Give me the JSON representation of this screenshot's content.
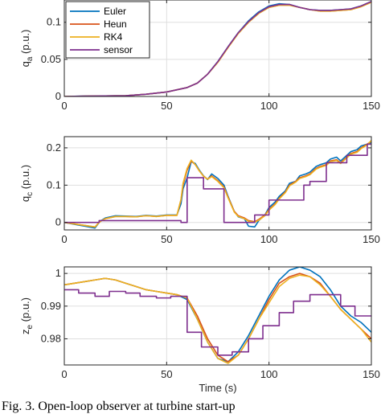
{
  "caption": "Fig. 3. Open-loop observer at turbine start-up",
  "chart_data": [
    {
      "type": "line",
      "ylabel": "q_a (p.u.)",
      "ylabel_main": "q",
      "ylabel_sub": "a",
      "ylabel_rest": " (p.u.)",
      "xlim": [
        0,
        150
      ],
      "ylim": [
        0,
        0.13
      ],
      "xticks": [
        0,
        50,
        100,
        150
      ],
      "yticks": [
        0,
        0.05,
        0.1
      ],
      "ytick_labels": [
        "0",
        "0.05",
        "0.1"
      ],
      "grid": true,
      "legend": "top-left",
      "series": [
        {
          "name": "Euler",
          "color": "#0072bd",
          "x": [
            0,
            10,
            20,
            30,
            40,
            50,
            55,
            60,
            65,
            70,
            75,
            80,
            85,
            90,
            95,
            100,
            105,
            110,
            115,
            120,
            125,
            130,
            135,
            140,
            145,
            150
          ],
          "y": [
            0,
            0.0005,
            0.0008,
            0.001,
            0.003,
            0.006,
            0.009,
            0.012,
            0.018,
            0.03,
            0.047,
            0.067,
            0.086,
            0.102,
            0.114,
            0.122,
            0.125,
            0.124,
            0.12,
            0.117,
            0.116,
            0.116,
            0.117,
            0.118,
            0.122,
            0.128
          ]
        },
        {
          "name": "Heun",
          "color": "#d95319",
          "x": [
            0,
            10,
            20,
            30,
            40,
            50,
            55,
            60,
            65,
            70,
            75,
            80,
            85,
            90,
            95,
            100,
            105,
            110,
            115,
            120,
            125,
            130,
            135,
            140,
            145,
            150
          ],
          "y": [
            0,
            0.0004,
            0.0008,
            0.001,
            0.003,
            0.006,
            0.009,
            0.012,
            0.018,
            0.03,
            0.046,
            0.066,
            0.085,
            0.1,
            0.112,
            0.12,
            0.123,
            0.123,
            0.12,
            0.117,
            0.115,
            0.115,
            0.116,
            0.117,
            0.121,
            0.127
          ]
        },
        {
          "name": "RK4",
          "color": "#edb120",
          "x": [
            0,
            10,
            20,
            30,
            40,
            50,
            55,
            60,
            65,
            70,
            75,
            80,
            85,
            90,
            95,
            100,
            105,
            110,
            115,
            120,
            125,
            130,
            135,
            140,
            145,
            150
          ],
          "y": [
            0,
            0.0004,
            0.0008,
            0.001,
            0.003,
            0.006,
            0.009,
            0.012,
            0.018,
            0.03,
            0.046,
            0.066,
            0.085,
            0.1,
            0.112,
            0.12,
            0.123,
            0.123,
            0.12,
            0.117,
            0.115,
            0.115,
            0.116,
            0.117,
            0.121,
            0.127
          ]
        },
        {
          "name": "sensor",
          "color": "#7e2f8e",
          "x": [
            0,
            10,
            20,
            30,
            40,
            50,
            55,
            60,
            65,
            70,
            75,
            80,
            85,
            90,
            95,
            100,
            105,
            110,
            115,
            120,
            125,
            130,
            135,
            140,
            145,
            150
          ],
          "y": [
            0,
            0.0005,
            0.0008,
            0.001,
            0.003,
            0.006,
            0.009,
            0.012,
            0.018,
            0.03,
            0.047,
            0.067,
            0.086,
            0.101,
            0.113,
            0.121,
            0.124,
            0.124,
            0.12,
            0.117,
            0.116,
            0.116,
            0.117,
            0.118,
            0.122,
            0.128
          ]
        }
      ]
    },
    {
      "type": "line",
      "ylabel": "q_c (p.u.)",
      "ylabel_main": "q",
      "ylabel_sub": "c",
      "ylabel_rest": " (p.u.)",
      "xlim": [
        0,
        150
      ],
      "ylim": [
        -0.02,
        0.23
      ],
      "xticks": [
        0,
        50,
        100,
        150
      ],
      "yticks": [
        0,
        0.1,
        0.2
      ],
      "ytick_labels": [
        "0",
        "0.1",
        "0.2"
      ],
      "grid": true,
      "series": [
        {
          "name": "Euler",
          "color": "#0072bd",
          "x": [
            0,
            5,
            10,
            15,
            17,
            18,
            20,
            25,
            30,
            35,
            40,
            45,
            50,
            55,
            57,
            58,
            60,
            62,
            64,
            66,
            68,
            70,
            72,
            75,
            78,
            80,
            83,
            85,
            88,
            90,
            93,
            95,
            98,
            100,
            103,
            105,
            108,
            110,
            113,
            115,
            118,
            120,
            123,
            125,
            128,
            130,
            133,
            135,
            138,
            140,
            143,
            145,
            148,
            150
          ],
          "y": [
            0,
            -0.005,
            -0.01,
            -0.015,
            0,
            0.005,
            0.012,
            0.018,
            0.017,
            0.016,
            0.019,
            0.017,
            0.02,
            0.02,
            0.05,
            0.09,
            0.12,
            0.163,
            0.158,
            0.14,
            0.125,
            0.115,
            0.13,
            0.118,
            0.1,
            0.07,
            0.03,
            0.015,
            0.01,
            -0.01,
            -0.012,
            0.005,
            0.02,
            0.04,
            0.055,
            0.07,
            0.085,
            0.105,
            0.11,
            0.125,
            0.13,
            0.135,
            0.15,
            0.155,
            0.16,
            0.17,
            0.175,
            0.165,
            0.18,
            0.19,
            0.195,
            0.205,
            0.21,
            0.215
          ]
        },
        {
          "name": "Heun",
          "color": "#d95319",
          "x": [
            0,
            5,
            10,
            15,
            17,
            18,
            20,
            25,
            30,
            35,
            40,
            45,
            50,
            55,
            57,
            58,
            60,
            62,
            64,
            66,
            68,
            70,
            72,
            75,
            78,
            80,
            83,
            85,
            88,
            90,
            93,
            95,
            98,
            100,
            103,
            105,
            108,
            110,
            113,
            115,
            118,
            120,
            123,
            125,
            128,
            130,
            133,
            135,
            138,
            140,
            143,
            145,
            148,
            150
          ],
          "y": [
            0,
            -0.004,
            -0.008,
            -0.012,
            0,
            0.004,
            0.01,
            0.016,
            0.016,
            0.015,
            0.018,
            0.016,
            0.019,
            0.019,
            0.06,
            0.1,
            0.14,
            0.165,
            0.155,
            0.138,
            0.124,
            0.116,
            0.125,
            0.112,
            0.095,
            0.068,
            0.03,
            0.018,
            0.012,
            0.005,
            0.002,
            0.008,
            0.02,
            0.035,
            0.05,
            0.065,
            0.082,
            0.1,
            0.11,
            0.12,
            0.125,
            0.13,
            0.145,
            0.15,
            0.155,
            0.165,
            0.168,
            0.16,
            0.175,
            0.185,
            0.19,
            0.2,
            0.21,
            0.218
          ]
        },
        {
          "name": "RK4",
          "color": "#edb120",
          "x": [
            0,
            5,
            10,
            15,
            17,
            18,
            20,
            25,
            30,
            35,
            40,
            45,
            50,
            55,
            57,
            58,
            60,
            62,
            64,
            66,
            68,
            70,
            72,
            75,
            78,
            80,
            83,
            85,
            88,
            90,
            93,
            95,
            98,
            100,
            103,
            105,
            108,
            110,
            113,
            115,
            118,
            120,
            123,
            125,
            128,
            130,
            133,
            135,
            138,
            140,
            143,
            145,
            148,
            150
          ],
          "y": [
            0,
            -0.004,
            -0.008,
            -0.012,
            0,
            0.004,
            0.01,
            0.016,
            0.016,
            0.015,
            0.018,
            0.016,
            0.019,
            0.019,
            0.062,
            0.105,
            0.145,
            0.167,
            0.155,
            0.138,
            0.124,
            0.116,
            0.123,
            0.11,
            0.093,
            0.066,
            0.028,
            0.016,
            0.01,
            0.003,
            0.0,
            0.006,
            0.018,
            0.033,
            0.048,
            0.063,
            0.08,
            0.098,
            0.108,
            0.118,
            0.123,
            0.128,
            0.143,
            0.148,
            0.153,
            0.163,
            0.166,
            0.158,
            0.173,
            0.183,
            0.188,
            0.198,
            0.208,
            0.22
          ]
        },
        {
          "name": "sensor",
          "color": "#7e2f8e",
          "x": [
            0,
            17,
            17,
            57,
            57,
            60,
            60,
            68,
            68,
            78,
            78,
            93,
            93,
            100,
            100,
            117,
            117,
            120,
            120,
            128,
            128,
            138,
            138,
            148,
            148,
            150
          ],
          "y": [
            0,
            0,
            0.005,
            0.005,
            0,
            0,
            0.12,
            0.12,
            0.09,
            0.09,
            0.0,
            0.0,
            0.02,
            0.02,
            0.06,
            0.06,
            0.1,
            0.1,
            0.11,
            0.11,
            0.16,
            0.16,
            0.18,
            0.18,
            0.21,
            0.21
          ]
        }
      ]
    },
    {
      "type": "line",
      "ylabel": "z_e (p.u.)",
      "ylabel_main": "z",
      "ylabel_sub": "e",
      "ylabel_rest": " (p.u.)",
      "xlabel": "Time (s)",
      "xlim": [
        0,
        150
      ],
      "ylim": [
        0.972,
        1.002
      ],
      "xticks": [
        0,
        50,
        100,
        150
      ],
      "yticks": [
        0.98,
        0.99,
        1
      ],
      "ytick_labels": [
        "0.98",
        "0.99",
        "1"
      ],
      "grid": true,
      "series": [
        {
          "name": "Euler",
          "color": "#0072bd",
          "x": [
            0,
            5,
            10,
            15,
            20,
            25,
            30,
            35,
            40,
            45,
            50,
            55,
            60,
            65,
            70,
            75,
            80,
            85,
            90,
            95,
            100,
            105,
            110,
            115,
            120,
            125,
            130,
            135,
            140,
            145,
            150
          ],
          "y": [
            0.9965,
            0.997,
            0.9975,
            0.998,
            0.9985,
            0.998,
            0.997,
            0.996,
            0.995,
            0.9945,
            0.994,
            0.9935,
            0.992,
            0.986,
            0.979,
            0.974,
            0.973,
            0.976,
            0.981,
            0.987,
            0.993,
            0.998,
            1.001,
            1.002,
            1.001,
            0.999,
            0.995,
            0.99,
            0.987,
            0.985,
            0.982
          ]
        },
        {
          "name": "Heun",
          "color": "#d95319",
          "x": [
            0,
            5,
            10,
            15,
            20,
            25,
            30,
            35,
            40,
            45,
            50,
            55,
            60,
            65,
            70,
            75,
            80,
            85,
            90,
            95,
            100,
            105,
            110,
            115,
            120,
            125,
            130,
            135,
            140,
            145,
            150
          ],
          "y": [
            0.9965,
            0.997,
            0.9975,
            0.998,
            0.9985,
            0.998,
            0.997,
            0.996,
            0.995,
            0.9945,
            0.994,
            0.9935,
            0.9925,
            0.987,
            0.98,
            0.975,
            0.973,
            0.975,
            0.98,
            0.986,
            0.992,
            0.997,
            0.999,
            1.0,
            0.999,
            0.997,
            0.993,
            0.989,
            0.986,
            0.983,
            0.98
          ]
        },
        {
          "name": "RK4",
          "color": "#edb120",
          "x": [
            0,
            5,
            10,
            15,
            20,
            25,
            30,
            35,
            40,
            45,
            50,
            55,
            60,
            65,
            70,
            75,
            80,
            85,
            90,
            95,
            100,
            105,
            110,
            115,
            120,
            125,
            130,
            135,
            140,
            145,
            150
          ],
          "y": [
            0.9965,
            0.997,
            0.9975,
            0.998,
            0.9985,
            0.998,
            0.997,
            0.996,
            0.995,
            0.9945,
            0.994,
            0.9935,
            0.9925,
            0.986,
            0.979,
            0.974,
            0.9725,
            0.975,
            0.98,
            0.986,
            0.991,
            0.996,
            0.9985,
            0.9995,
            0.999,
            0.9965,
            0.993,
            0.989,
            0.986,
            0.983,
            0.979
          ]
        },
        {
          "name": "sensor",
          "color": "#7e2f8e",
          "x": [
            0,
            7,
            7,
            15,
            15,
            22,
            22,
            30,
            30,
            37,
            37,
            45,
            45,
            52,
            52,
            60,
            60,
            67,
            67,
            75,
            75,
            82,
            82,
            90,
            90,
            97,
            97,
            105,
            105,
            112,
            112,
            120,
            120,
            127,
            127,
            135,
            135,
            142,
            142,
            150
          ],
          "y": [
            0.995,
            0.995,
            0.994,
            0.994,
            0.993,
            0.993,
            0.9945,
            0.9945,
            0.994,
            0.994,
            0.993,
            0.993,
            0.9925,
            0.9925,
            0.993,
            0.993,
            0.982,
            0.982,
            0.9775,
            0.9775,
            0.975,
            0.975,
            0.976,
            0.976,
            0.98,
            0.98,
            0.984,
            0.984,
            0.988,
            0.988,
            0.9915,
            0.9915,
            0.9935,
            0.9935,
            0.9935,
            0.9935,
            0.99,
            0.99,
            0.987,
            0.987
          ]
        }
      ]
    }
  ]
}
